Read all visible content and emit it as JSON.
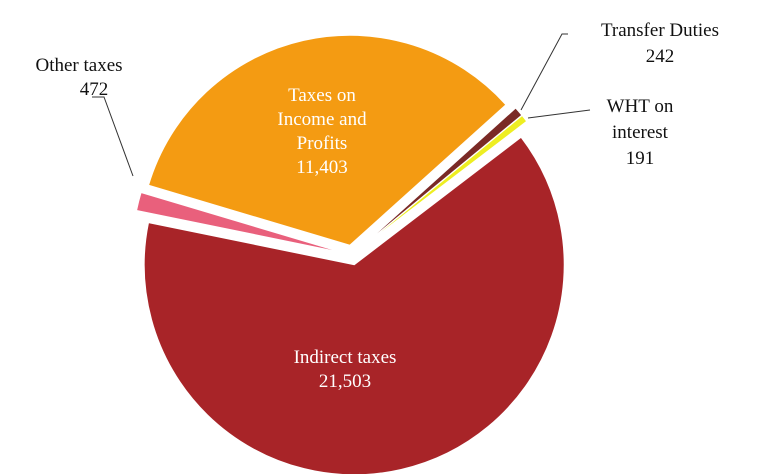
{
  "chart_data": {
    "type": "pie",
    "categories": [
      "Taxes on Income and Profits",
      "Transfer Duties",
      "WHT on interest",
      "Indirect taxes",
      "Other taxes"
    ],
    "values": [
      11403,
      242,
      191,
      21503,
      472
    ],
    "value_labels": [
      "11,403",
      "242",
      "191",
      "21,503",
      "472"
    ],
    "colors": [
      "#f49b12",
      "#7a2a26",
      "#eeee22",
      "#a82428",
      "#e9607c"
    ]
  }
}
